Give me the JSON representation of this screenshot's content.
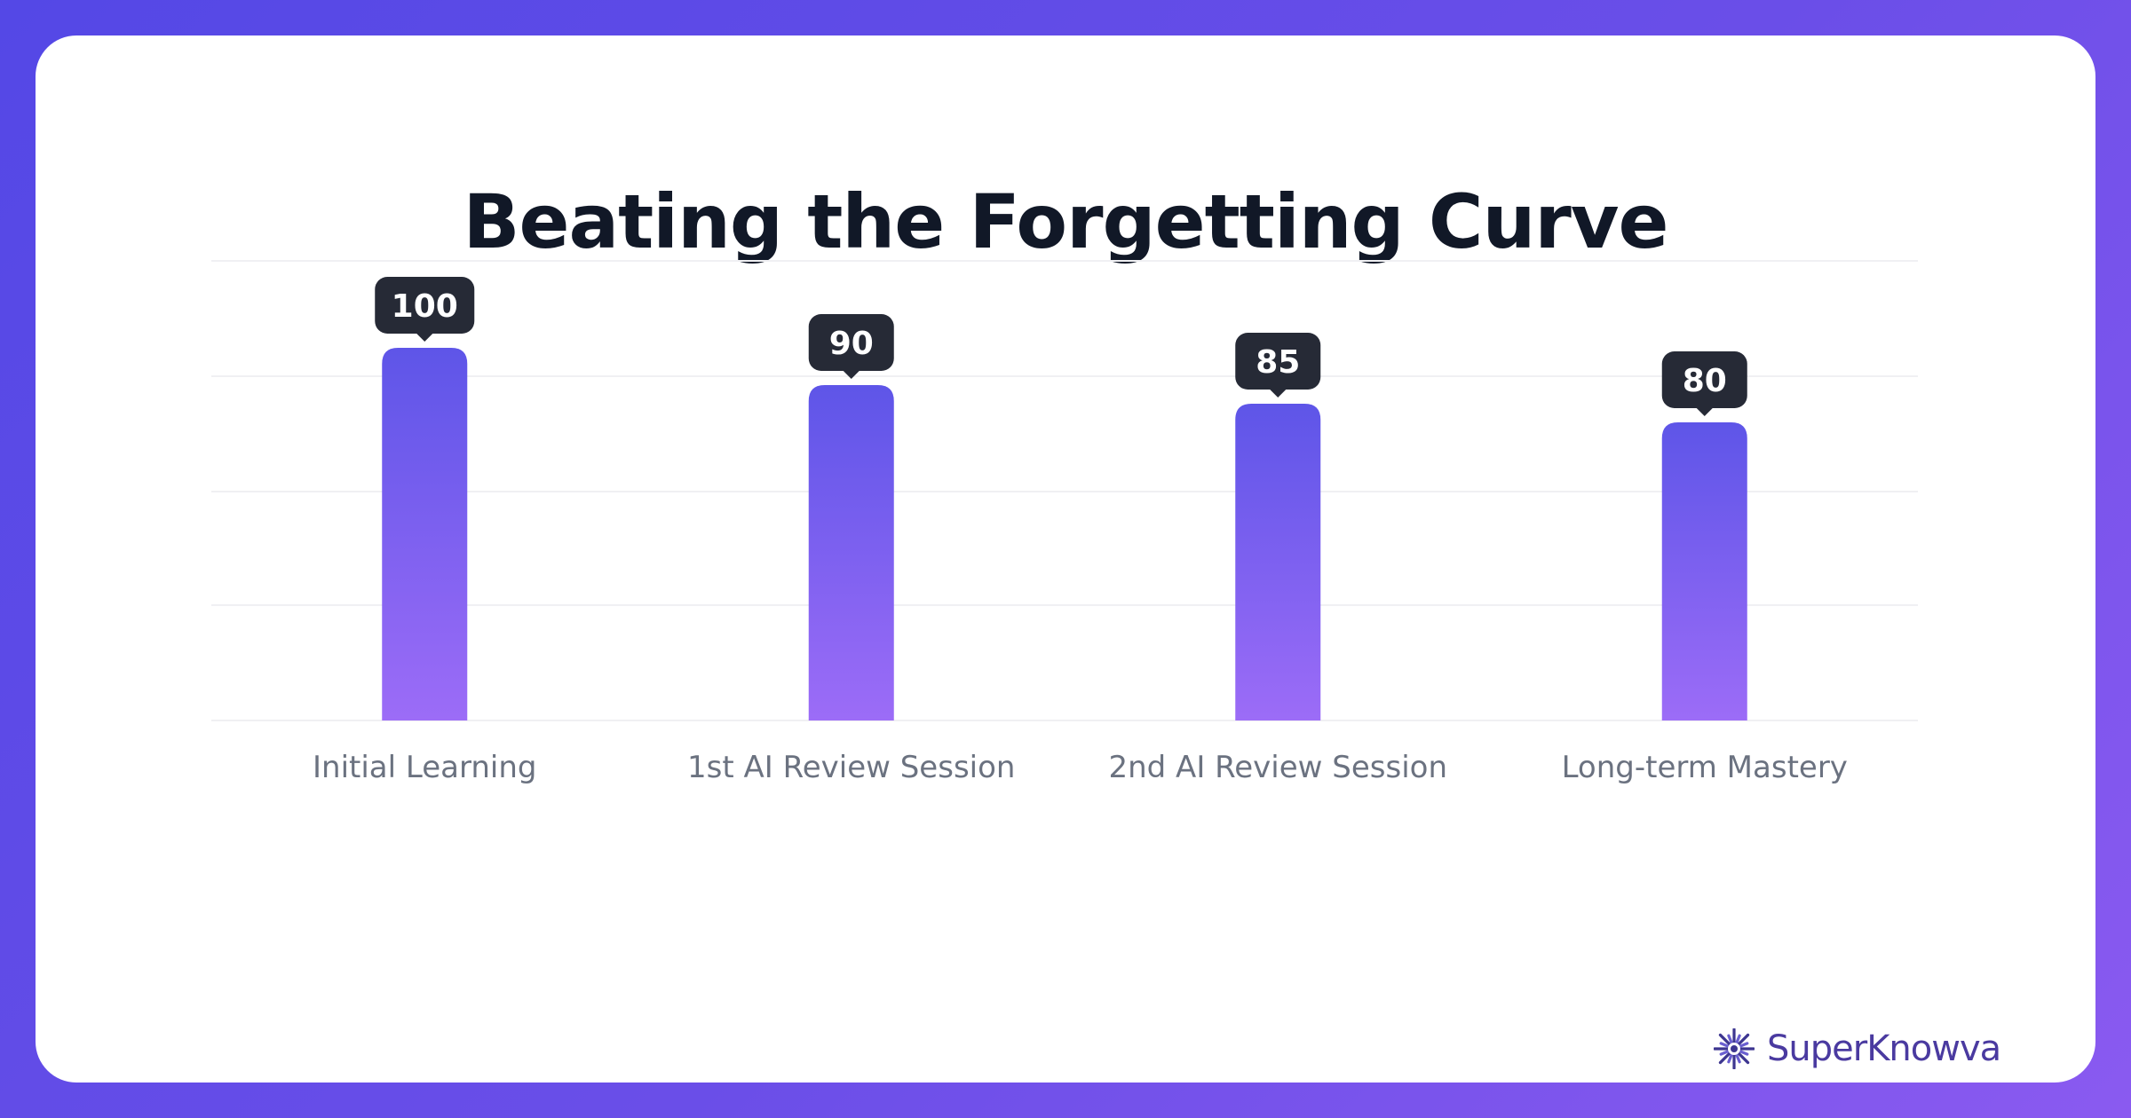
{
  "chart_data": {
    "type": "bar",
    "title": "Beating the Forgetting Curve",
    "categories": [
      "Initial Learning",
      "1st AI Review Session",
      "2nd AI Review Session",
      "Long-term Mastery"
    ],
    "values": [
      100,
      90,
      85,
      80
    ],
    "xlabel": "",
    "ylabel": "",
    "ylim": [
      0,
      100
    ],
    "grid": true,
    "legend": "none",
    "data_labels": true,
    "colors": {
      "bar_top": "#5e55e8",
      "bar_bottom": "#9c6cf7",
      "label_bg": "#262a36",
      "label_text": "#ffffff",
      "tick_text": "#6b7280",
      "grid": "#f0f0f3"
    }
  },
  "brand": {
    "name": "SuperKnowva",
    "icon": "starburst-icon"
  }
}
